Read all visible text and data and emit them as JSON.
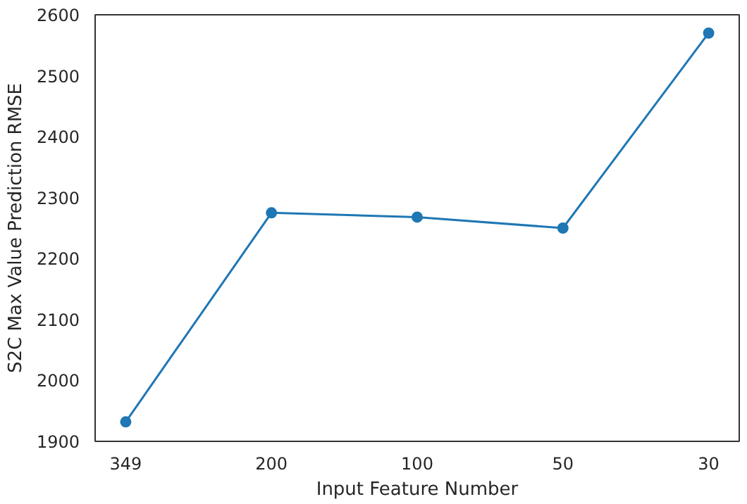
{
  "chart_data": {
    "type": "line",
    "xlabel": "Input Feature Number",
    "ylabel": "S2C Max Value Prediction RMSE",
    "categories": [
      "349",
      "200",
      "100",
      "50",
      "30"
    ],
    "series": [
      {
        "color": "#1f77b4",
        "values": [
          1932,
          2275,
          2268,
          2250,
          2570
        ]
      }
    ],
    "ylim": [
      1900,
      2600
    ],
    "yticks": [
      1900,
      2000,
      2100,
      2200,
      2300,
      2400,
      2500,
      2600
    ],
    "grid": false,
    "marker": "circle",
    "line_style": "solid"
  }
}
